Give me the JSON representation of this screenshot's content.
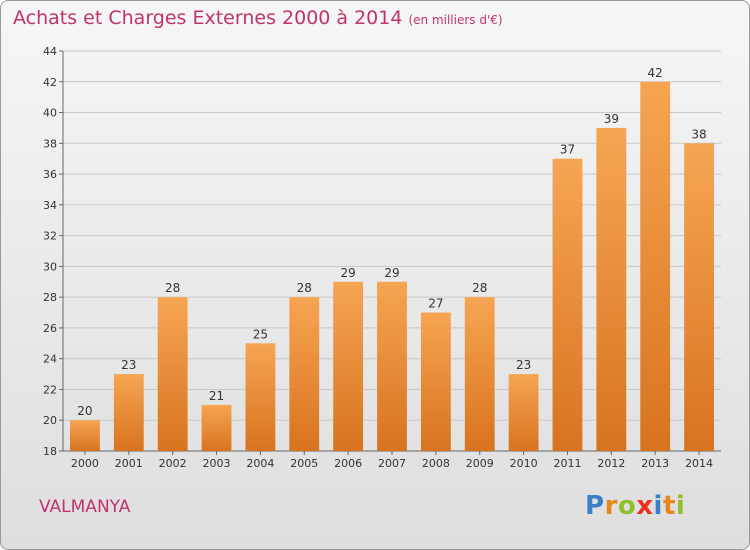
{
  "header": {
    "title": "Achats et Charges Externes 2000 à 2014",
    "unit": "(en milliers d'€)"
  },
  "footer": {
    "commune": "VALMANYA",
    "logo_letters": [
      "P",
      "r",
      "o",
      "x",
      "i",
      "t",
      "i"
    ],
    "logo_colors": [
      "#3d7fc4",
      "#e8861a",
      "#8fbf2b",
      "#e8321e",
      "#3d7fc4",
      "#e8861a",
      "#8fbf2b"
    ]
  },
  "chart_data": {
    "type": "bar",
    "title": "Achats et Charges Externes 2000 à 2014",
    "xlabel": "",
    "ylabel": "",
    "categories": [
      "2000",
      "2001",
      "2002",
      "2003",
      "2004",
      "2005",
      "2006",
      "2007",
      "2008",
      "2009",
      "2010",
      "2011",
      "2012",
      "2013",
      "2014"
    ],
    "values": [
      20,
      23,
      28,
      21,
      25,
      28,
      29,
      29,
      27,
      28,
      23,
      37,
      39,
      42,
      38
    ],
    "ylim": [
      18,
      44
    ],
    "yticks": [
      18,
      20,
      22,
      24,
      26,
      28,
      30,
      32,
      34,
      36,
      38,
      40,
      42,
      44
    ],
    "grid": true,
    "bar_color_light": "#f6a553",
    "bar_color_dark": "#d8731f"
  }
}
